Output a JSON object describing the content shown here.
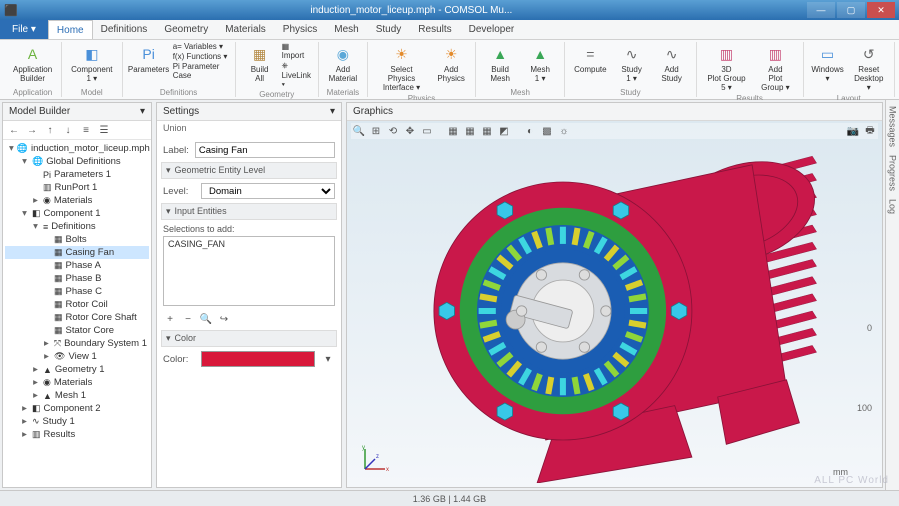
{
  "window": {
    "title": "induction_motor_liceup.mph - COMSOL Mu..."
  },
  "menu": {
    "file": "File ▾",
    "tabs": [
      "Home",
      "Definitions",
      "Geometry",
      "Materials",
      "Physics",
      "Mesh",
      "Study",
      "Results",
      "Developer"
    ],
    "active": 0
  },
  "ribbon": {
    "groups": [
      {
        "label": "Application",
        "buttons": [
          {
            "icon": "A",
            "color": "#6cb33f",
            "label": "Application Builder"
          }
        ]
      },
      {
        "label": "Model",
        "buttons": [
          {
            "icon": "◧",
            "color": "#4a90d9",
            "label": "Component 1 ▾"
          }
        ]
      },
      {
        "label": "Definitions",
        "buttons": [
          {
            "icon": "Pi",
            "color": "#4a90d9",
            "label": "Parameters"
          }
        ],
        "stack": [
          "a= Variables ▾",
          "f(x) Functions ▾",
          "Pi Parameter Case"
        ]
      },
      {
        "label": "Geometry",
        "buttons": [
          {
            "icon": "▦",
            "color": "#b58b46",
            "label": "Build All"
          }
        ],
        "stack": [
          "▦ Import",
          "⎈ LiveLink ▾"
        ]
      },
      {
        "label": "Materials",
        "buttons": [
          {
            "icon": "◉",
            "color": "#5ba8d8",
            "label": "Add Material"
          }
        ]
      },
      {
        "label": "Physics",
        "buttons": [
          {
            "icon": "☀",
            "color": "#e38b2c",
            "label": "Select Physics Interface ▾"
          },
          {
            "icon": "☀",
            "color": "#e38b2c",
            "label": "Add Physics"
          }
        ]
      },
      {
        "label": "Mesh",
        "buttons": [
          {
            "icon": "▲",
            "color": "#3aa757",
            "label": "Build Mesh"
          },
          {
            "icon": "▲",
            "color": "#3aa757",
            "label": "Mesh 1 ▾"
          }
        ]
      },
      {
        "label": "Study",
        "buttons": [
          {
            "icon": "=",
            "color": "#666",
            "label": "Compute"
          },
          {
            "icon": "∿",
            "color": "#666",
            "label": "Study 1 ▾"
          },
          {
            "icon": "∿",
            "color": "#666",
            "label": "Add Study"
          }
        ]
      },
      {
        "label": "Results",
        "buttons": [
          {
            "icon": "▥",
            "color": "#c94f7a",
            "label": "3D Plot Group 5 ▾"
          },
          {
            "icon": "▥",
            "color": "#c94f7a",
            "label": "Add Plot Group ▾"
          }
        ]
      },
      {
        "label": "Layout",
        "buttons": [
          {
            "icon": "▭",
            "color": "#4a90d9",
            "label": "Windows ▾"
          },
          {
            "icon": "↺",
            "color": "#666",
            "label": "Reset Desktop ▾"
          }
        ]
      }
    ]
  },
  "modelBuilder": {
    "title": "Model Builder",
    "tree": [
      {
        "d": 0,
        "tw": "▾",
        "ic": "🌐",
        "t": "induction_motor_liceup.mph"
      },
      {
        "d": 1,
        "tw": "▾",
        "ic": "🌐",
        "t": "Global Definitions"
      },
      {
        "d": 2,
        "tw": "",
        "ic": "Pi",
        "t": "Parameters 1"
      },
      {
        "d": 2,
        "tw": "",
        "ic": "▥",
        "t": "RunPort 1"
      },
      {
        "d": 2,
        "tw": "▸",
        "ic": "◉",
        "t": "Materials"
      },
      {
        "d": 1,
        "tw": "▾",
        "ic": "◧",
        "t": "Component 1"
      },
      {
        "d": 2,
        "tw": "▾",
        "ic": "≡",
        "t": "Definitions"
      },
      {
        "d": 3,
        "tw": "",
        "ic": "▦",
        "t": "Bolts"
      },
      {
        "d": 3,
        "tw": "",
        "ic": "▦",
        "t": "Casing Fan",
        "sel": true
      },
      {
        "d": 3,
        "tw": "",
        "ic": "▦",
        "t": "Phase A"
      },
      {
        "d": 3,
        "tw": "",
        "ic": "▦",
        "t": "Phase B"
      },
      {
        "d": 3,
        "tw": "",
        "ic": "▦",
        "t": "Phase C"
      },
      {
        "d": 3,
        "tw": "",
        "ic": "▦",
        "t": "Rotor Coil"
      },
      {
        "d": 3,
        "tw": "",
        "ic": "▦",
        "t": "Rotor Core Shaft"
      },
      {
        "d": 3,
        "tw": "",
        "ic": "▦",
        "t": "Stator Core"
      },
      {
        "d": 3,
        "tw": "▸",
        "ic": "⤧",
        "t": "Boundary System 1"
      },
      {
        "d": 3,
        "tw": "▸",
        "ic": "👁",
        "t": "View 1"
      },
      {
        "d": 2,
        "tw": "▸",
        "ic": "▲",
        "t": "Geometry 1"
      },
      {
        "d": 2,
        "tw": "▸",
        "ic": "◉",
        "t": "Materials"
      },
      {
        "d": 2,
        "tw": "▸",
        "ic": "▲",
        "t": "Mesh 1"
      },
      {
        "d": 1,
        "tw": "▸",
        "ic": "◧",
        "t": "Component 2"
      },
      {
        "d": 1,
        "tw": "▸",
        "ic": "∿",
        "t": "Study 1"
      },
      {
        "d": 1,
        "tw": "▸",
        "ic": "▥",
        "t": "Results"
      }
    ]
  },
  "settings": {
    "title": "Settings",
    "subtitle": "Union",
    "label_field": "Label:",
    "label_value": "Casing Fan",
    "section1": "Geometric Entity Level",
    "level_field": "Level:",
    "level_value": "Domain",
    "section2": "Input Entities",
    "selections_label": "Selections to add:",
    "selection_item": "CASING_FAN",
    "section3": "Color",
    "color_field": "Color:",
    "color_value": "#d8183a"
  },
  "graphics": {
    "title": "Graphics",
    "unit": "mm",
    "scale100": "100",
    "scale0": "0",
    "axes": {
      "x": "x",
      "y": "y",
      "z": "z"
    },
    "motor": {
      "casing_color": "#c9184a",
      "casing_hilite": "#e8447a",
      "inner_blue": "#1a5db3",
      "stator_green": "#2e9e3f",
      "coil_yellow": "#d8cf2e",
      "coil_cyan": "#3dd6e0",
      "shaft_grey": "#d8dbdf",
      "bolt_cyan": "#38c8e8"
    }
  },
  "sideTabs": [
    "Messages",
    "Progress",
    "Log"
  ],
  "status": {
    "mem": "1.36 GB | 1.44 GB"
  },
  "watermark": "ALL PC World"
}
